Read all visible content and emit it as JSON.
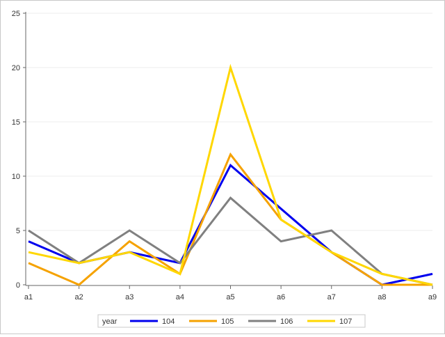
{
  "chart_data": {
    "type": "line",
    "title": "",
    "xlabel": "",
    "ylabel": "",
    "categories": [
      "a1",
      "a2",
      "a3",
      "a4",
      "a5",
      "a6",
      "a7",
      "a8",
      "a9"
    ],
    "ylim": [
      0,
      25
    ],
    "yticks": [
      0,
      5,
      10,
      15,
      20,
      25
    ],
    "grid": true,
    "legend_position": "bottom",
    "legend": {
      "title": "year"
    },
    "series": [
      {
        "name": "104",
        "color": "#0000ee",
        "values": [
          4,
          2,
          3,
          2,
          11,
          7,
          3,
          0,
          1
        ]
      },
      {
        "name": "105",
        "color": "#f5a200",
        "values": [
          2,
          0,
          4,
          1,
          12,
          6,
          3,
          0,
          0
        ]
      },
      {
        "name": "106",
        "color": "#808080",
        "values": [
          5,
          2,
          5,
          2,
          8,
          4,
          5,
          1,
          0
        ]
      },
      {
        "name": "107",
        "color": "#ffd700",
        "values": [
          3,
          2,
          3,
          1,
          20,
          6,
          3,
          1,
          0
        ]
      }
    ]
  }
}
